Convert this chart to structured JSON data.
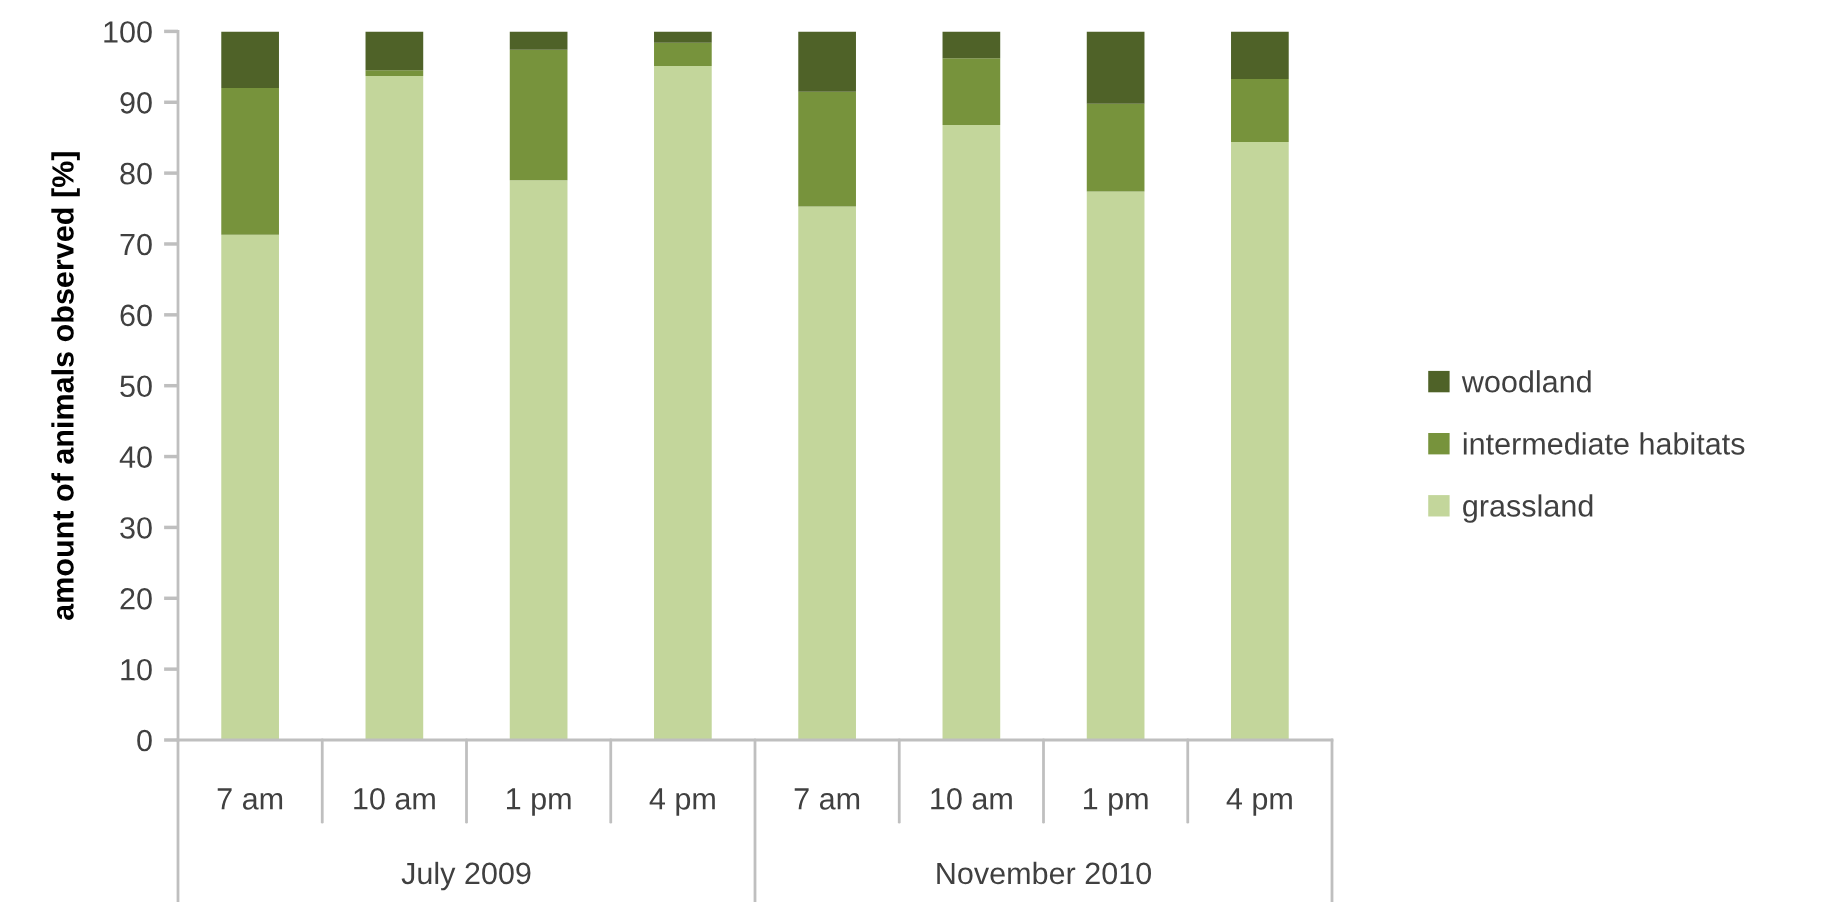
{
  "chart_data": {
    "type": "bar",
    "stacked": true,
    "ylabel": "amount of animals observed [%]",
    "categories": [
      "7 am",
      "10 am",
      "1 pm",
      "4 pm",
      "7 am",
      "10 am",
      "1 pm",
      "4 pm"
    ],
    "series": [
      {
        "name": "grassland",
        "color": "#c3d69b",
        "values": [
          71.3,
          93.7,
          79.0,
          95.1,
          75.3,
          86.8,
          77.4,
          84.4
        ]
      },
      {
        "name": "intermediate habitats",
        "color": "#77933c",
        "values": [
          20.7,
          0.8,
          18.4,
          3.3,
          16.2,
          9.4,
          12.4,
          8.9
        ]
      },
      {
        "name": "woodland",
        "color": "#4f6228",
        "values": [
          8.0,
          5.5,
          2.6,
          1.6,
          8.5,
          3.8,
          10.2,
          6.7
        ]
      }
    ],
    "ylim": [
      0,
      100
    ],
    "yticks": [
      0,
      10,
      20,
      30,
      40,
      50,
      60,
      70,
      80,
      90,
      100
    ],
    "legend": "right",
    "annotations": [
      "July 2009",
      "November 2010"
    ]
  }
}
